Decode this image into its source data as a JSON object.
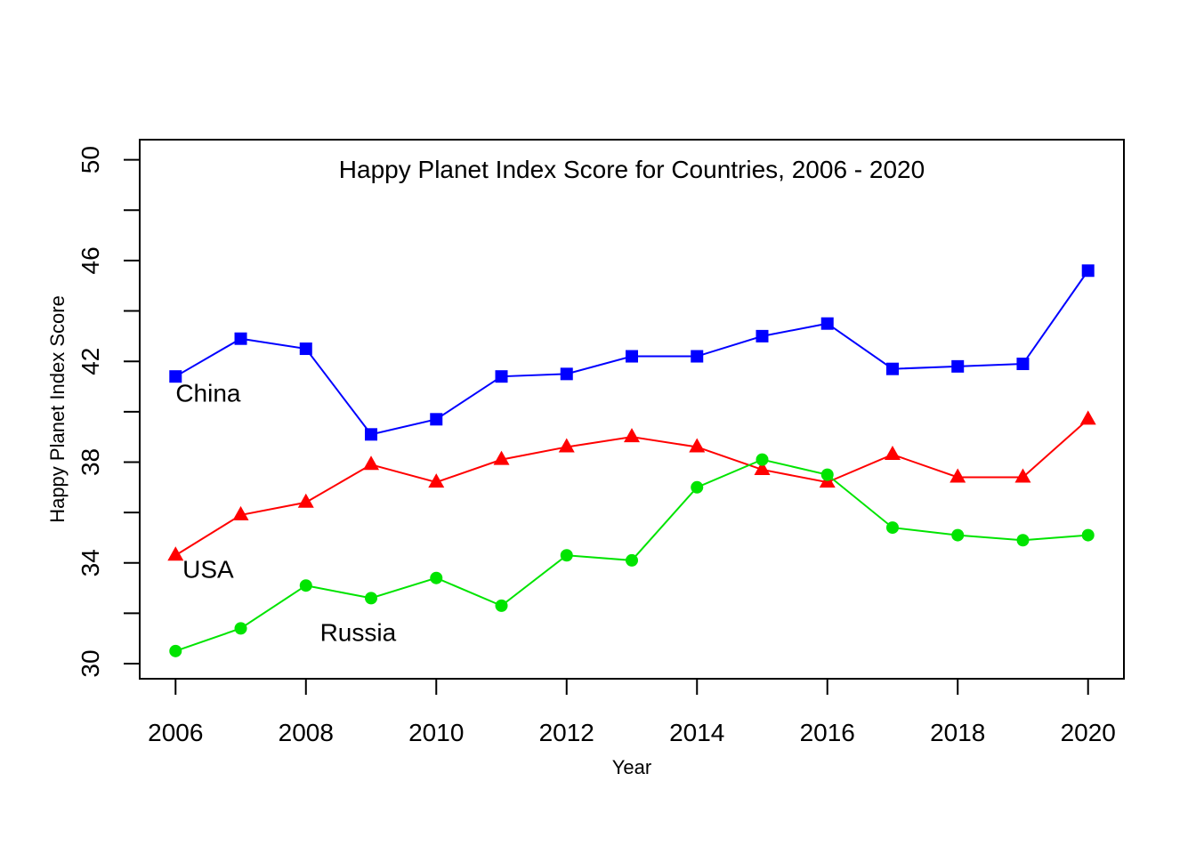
{
  "chart_data": {
    "type": "line",
    "title": "Happy Planet Index Score for Countries, 2006 - 2020",
    "xlabel": "Year",
    "ylabel": "Happy Planet Index Score",
    "x": [
      2006,
      2007,
      2008,
      2009,
      2010,
      2011,
      2012,
      2013,
      2014,
      2015,
      2016,
      2017,
      2018,
      2019,
      2020
    ],
    "xlim": [
      2005.45,
      2020.55
    ],
    "ylim": [
      29.4,
      50.8
    ],
    "x_ticks": [
      2006,
      2008,
      2010,
      2012,
      2014,
      2016,
      2018,
      2020
    ],
    "x_tick_labels": [
      "2006",
      "2008",
      "2010",
      "2012",
      "2014",
      "2016",
      "2018",
      "2020"
    ],
    "y_ticks": [
      30,
      32,
      34,
      36,
      38,
      40,
      42,
      44,
      46,
      48,
      50
    ],
    "y_tick_labels": [
      "30",
      "",
      "34",
      "",
      "38",
      "",
      "42",
      "",
      "46",
      "",
      "50"
    ],
    "grid": false,
    "legend": "none",
    "series": [
      {
        "name": "China",
        "color": "#0000ff",
        "marker": "square",
        "values": [
          41.4,
          42.9,
          42.5,
          39.1,
          39.7,
          41.4,
          41.5,
          42.2,
          42.2,
          43.0,
          43.5,
          41.7,
          41.8,
          41.9,
          45.6
        ],
        "label_x": 2006.5,
        "label_y": 40.4
      },
      {
        "name": "USA",
        "color": "#ff0000",
        "marker": "triangle",
        "values": [
          34.3,
          35.9,
          36.4,
          37.9,
          37.2,
          38.1,
          38.6,
          39.0,
          38.6,
          37.7,
          37.2,
          38.3,
          37.4,
          37.4,
          39.7
        ],
        "label_x": 2006.5,
        "label_y": 33.4
      },
      {
        "name": "Russia",
        "color": "#00e400",
        "marker": "circle",
        "values": [
          30.5,
          31.4,
          33.1,
          32.6,
          33.4,
          32.3,
          34.3,
          34.1,
          37.0,
          38.1,
          37.5,
          35.4,
          35.1,
          34.9,
          35.1
        ],
        "label_x": 2008.8,
        "label_y": 30.9
      }
    ]
  }
}
